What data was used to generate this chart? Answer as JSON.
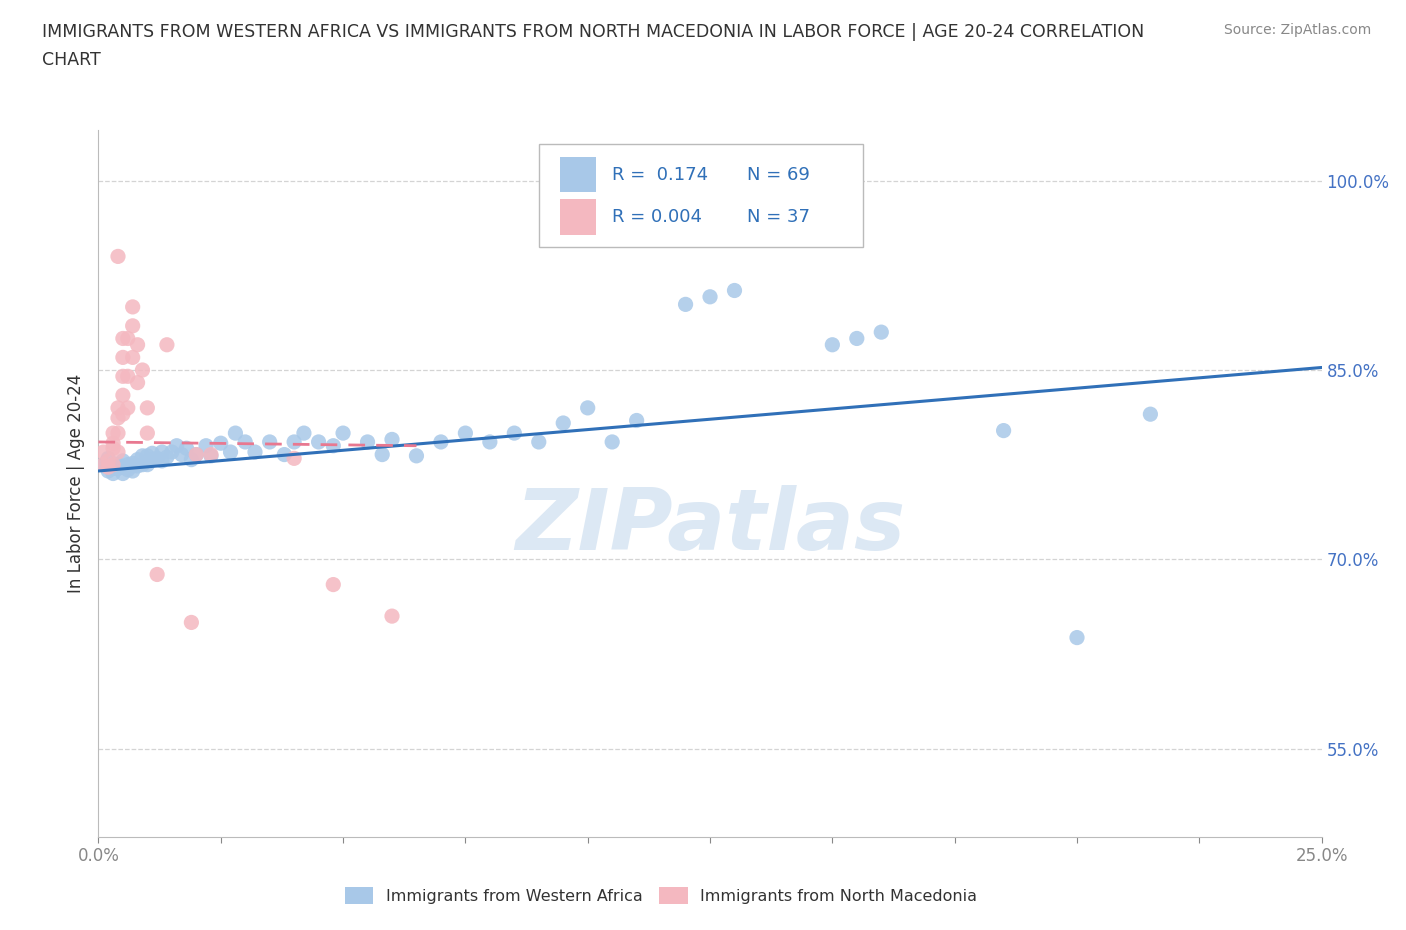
{
  "title_line1": "IMMIGRANTS FROM WESTERN AFRICA VS IMMIGRANTS FROM NORTH MACEDONIA IN LABOR FORCE | AGE 20-24 CORRELATION",
  "title_line2": "CHART",
  "source_text": "Source: ZipAtlas.com",
  "ylabel": "In Labor Force | Age 20-24",
  "xlim": [
    0.0,
    0.25
  ],
  "ylim": [
    0.48,
    1.04
  ],
  "ytick_labels": [
    "55.0%",
    "70.0%",
    "85.0%",
    "100.0%"
  ],
  "ytick_values": [
    0.55,
    0.7,
    0.85,
    1.0
  ],
  "xtick_labels_bottom": [
    "0.0%",
    "25.0%"
  ],
  "xtick_values_bottom": [
    0.0,
    0.25
  ],
  "blue_color": "#a8c8e8",
  "pink_color": "#f4b8c0",
  "blue_line_color": "#3070b8",
  "pink_line_color": "#e87890",
  "grid_color": "#d0d0d0",
  "watermark_text": "ZIPatlas",
  "watermark_color": "#dce8f4",
  "R_blue": 0.174,
  "N_blue": 69,
  "R_pink": 0.004,
  "N_pink": 37,
  "blue_line_x0": 0.0,
  "blue_line_y0": 0.77,
  "blue_line_x1": 0.25,
  "blue_line_y1": 0.852,
  "pink_line_x0": 0.0,
  "pink_line_x1": 0.065,
  "pink_line_y0": 0.793,
  "pink_line_y1": 0.79,
  "blue_x": [
    0.001,
    0.002,
    0.002,
    0.003,
    0.003,
    0.004,
    0.004,
    0.005,
    0.005,
    0.005,
    0.006,
    0.006,
    0.007,
    0.007,
    0.007,
    0.008,
    0.008,
    0.009,
    0.009,
    0.01,
    0.01,
    0.011,
    0.011,
    0.012,
    0.013,
    0.013,
    0.014,
    0.015,
    0.016,
    0.017,
    0.018,
    0.019,
    0.02,
    0.022,
    0.023,
    0.025,
    0.027,
    0.028,
    0.03,
    0.032,
    0.035,
    0.038,
    0.04,
    0.042,
    0.045,
    0.048,
    0.05,
    0.055,
    0.058,
    0.06,
    0.065,
    0.07,
    0.075,
    0.08,
    0.085,
    0.09,
    0.095,
    0.1,
    0.105,
    0.11,
    0.12,
    0.125,
    0.13,
    0.15,
    0.155,
    0.16,
    0.185,
    0.2,
    0.215
  ],
  "blue_y": [
    0.775,
    0.78,
    0.77,
    0.772,
    0.768,
    0.775,
    0.772,
    0.778,
    0.773,
    0.768,
    0.775,
    0.771,
    0.774,
    0.776,
    0.77,
    0.779,
    0.774,
    0.782,
    0.775,
    0.782,
    0.775,
    0.784,
    0.779,
    0.78,
    0.785,
    0.778,
    0.781,
    0.785,
    0.79,
    0.783,
    0.788,
    0.779,
    0.783,
    0.79,
    0.782,
    0.792,
    0.785,
    0.8,
    0.793,
    0.785,
    0.793,
    0.783,
    0.793,
    0.8,
    0.793,
    0.79,
    0.8,
    0.793,
    0.783,
    0.795,
    0.782,
    0.793,
    0.8,
    0.793,
    0.8,
    0.793,
    0.808,
    0.82,
    0.793,
    0.81,
    0.902,
    0.908,
    0.913,
    0.87,
    0.875,
    0.88,
    0.802,
    0.638,
    0.815
  ],
  "pink_x": [
    0.001,
    0.001,
    0.002,
    0.002,
    0.003,
    0.003,
    0.003,
    0.003,
    0.004,
    0.004,
    0.004,
    0.004,
    0.004,
    0.005,
    0.005,
    0.005,
    0.005,
    0.005,
    0.006,
    0.006,
    0.006,
    0.007,
    0.007,
    0.007,
    0.008,
    0.008,
    0.009,
    0.01,
    0.01,
    0.012,
    0.014,
    0.019,
    0.02,
    0.023,
    0.04,
    0.048,
    0.06
  ],
  "pink_y": [
    0.775,
    0.785,
    0.778,
    0.773,
    0.792,
    0.8,
    0.788,
    0.775,
    0.94,
    0.82,
    0.812,
    0.8,
    0.785,
    0.875,
    0.86,
    0.845,
    0.83,
    0.815,
    0.875,
    0.845,
    0.82,
    0.9,
    0.885,
    0.86,
    0.87,
    0.84,
    0.85,
    0.8,
    0.82,
    0.688,
    0.87,
    0.65,
    0.783,
    0.783,
    0.78,
    0.68,
    0.655
  ]
}
